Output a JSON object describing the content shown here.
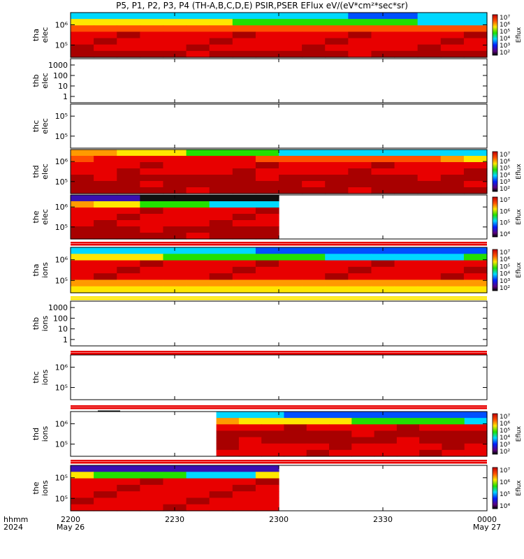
{
  "title": "P5, P1, P2, P3, P4 (TH-A,B,C,D,E) PSIR,PSER EFlux eV/(eV*cm²*sec*sr)",
  "time_axis": {
    "label_line1": "hhmm",
    "label_line2": "2024",
    "ticks": [
      {
        "t": 0,
        "label": "2200",
        "sub": "May 26"
      },
      {
        "t": 30,
        "label": "2230",
        "sub": ""
      },
      {
        "t": 60,
        "label": "2300",
        "sub": ""
      },
      {
        "t": 90,
        "label": "2330",
        "sub": ""
      },
      {
        "t": 120,
        "label": "0000",
        "sub": "May 27"
      }
    ],
    "range_minutes": [
      0,
      120
    ]
  },
  "colors": {
    "dark_red": "#a80000",
    "red": "#e80000",
    "orange_red": "#ff5000",
    "orange": "#ff9a00",
    "yellow": "#ffe600",
    "green": "#22e000",
    "cyan": "#00d8ff",
    "blue": "#0050ff",
    "indigo": "#3a10b0",
    "black": "#101010"
  },
  "chart_data": [
    {
      "type": "heatmap",
      "probe": "tha",
      "species": "elec",
      "ylabel": [
        "tha",
        "elec"
      ],
      "yticks": [
        "10⁶",
        "10⁵"
      ],
      "colorbar": {
        "label": "Eflux",
        "ticks": [
          "10⁷",
          "10⁶",
          "10⁵",
          "10⁴",
          "10³",
          "10²"
        ]
      },
      "coverage": [
        0,
        120
      ],
      "rows": [
        "cyan",
        "yellow",
        "orange_red",
        "red",
        "red",
        "red",
        "dark_red"
      ],
      "top_variation": [
        "cyan",
        "cyan",
        "cyan",
        "cyan",
        "cyan",
        "cyan",
        "cyan",
        "cyan",
        "cyan",
        "cyan",
        "cyan",
        "cyan",
        "blue",
        "blue",
        "blue",
        "cyan",
        "cyan",
        "cyan"
      ],
      "row2_variation": [
        "yellow",
        "yellow",
        "yellow",
        "yellow",
        "yellow",
        "yellow",
        "yellow",
        "green",
        "green",
        "green",
        "green",
        "green",
        "green",
        "green",
        "green",
        "cyan",
        "cyan",
        "cyan"
      ]
    },
    {
      "type": "heatmap",
      "probe": "thb",
      "species": "elec",
      "ylabel": [
        "thb",
        "elec"
      ],
      "yticks": [
        "1000",
        "100",
        "10",
        "1"
      ],
      "coverage": null
    },
    {
      "type": "heatmap",
      "probe": "thc",
      "species": "elec",
      "ylabel": [
        "thc",
        "elec"
      ],
      "yticks": [
        "10⁵",
        "10⁵"
      ],
      "coverage": null
    },
    {
      "type": "heatmap",
      "probe": "thd",
      "species": "elec",
      "ylabel": [
        "thd",
        "elec"
      ],
      "yticks": [
        "10⁶",
        "10⁵"
      ],
      "colorbar": {
        "label": "Eflux",
        "ticks": [
          "10⁷",
          "10⁶",
          "10⁵",
          "10⁴",
          "10³",
          "10²"
        ]
      },
      "coverage": [
        0,
        120
      ],
      "rows": [
        "cyan",
        "yellow",
        "red",
        "red",
        "dark_red",
        "dark_red",
        "dark_red"
      ],
      "top_variation": [
        "orange",
        "orange",
        "yellow",
        "yellow",
        "yellow",
        "green",
        "green",
        "green",
        "green",
        "cyan",
        "cyan",
        "cyan",
        "cyan",
        "cyan",
        "cyan",
        "cyan",
        "cyan",
        "cyan"
      ],
      "row2_variation": [
        "orange_red",
        "red",
        "red",
        "red",
        "red",
        "red",
        "red",
        "red",
        "orange_red",
        "orange_red",
        "orange_red",
        "orange_red",
        "orange_red",
        "orange_red",
        "orange_red",
        "orange_red",
        "orange",
        "yellow"
      ]
    },
    {
      "type": "heatmap",
      "probe": "the",
      "species": "elec",
      "ylabel": [
        "the",
        "elec"
      ],
      "yticks": [
        "10⁶",
        "10⁵"
      ],
      "colorbar": {
        "label": "Eflux",
        "ticks": [
          "10⁷",
          "10⁶",
          "10⁵",
          "10⁴"
        ]
      },
      "coverage": [
        0,
        60
      ],
      "rows": [
        "indigo",
        "orange",
        "red",
        "red",
        "red",
        "dark_red",
        "dark_red"
      ],
      "top_variation": [
        "indigo",
        "indigo",
        "indigo",
        "black",
        "black",
        "black",
        "black",
        "black",
        "black"
      ],
      "row2_variation": [
        "orange",
        "yellow",
        "yellow",
        "green",
        "green",
        "green",
        "cyan",
        "cyan",
        "cyan"
      ]
    },
    {
      "type": "heatmap",
      "probe": "tha",
      "species": "ions",
      "ylabel": [
        "tha",
        "ions"
      ],
      "yticks": [
        "10⁶",
        "10⁵"
      ],
      "colorbar": {
        "label": "Eflux",
        "ticks": [
          "10⁷",
          "10⁶",
          "10⁵",
          "10⁴",
          "10³",
          "10²"
        ]
      },
      "coverage": [
        0,
        120
      ],
      "rows": [
        "cyan",
        "yellow",
        "red",
        "red",
        "red",
        "orange",
        "yellow"
      ],
      "top_variation": [
        "cyan",
        "cyan",
        "cyan",
        "cyan",
        "cyan",
        "cyan",
        "cyan",
        "cyan",
        "blue",
        "blue",
        "blue",
        "blue",
        "blue",
        "blue",
        "blue",
        "blue",
        "blue",
        "blue"
      ],
      "row2_variation": [
        "yellow",
        "yellow",
        "yellow",
        "yellow",
        "green",
        "green",
        "green",
        "green",
        "green",
        "green",
        "green",
        "cyan",
        "cyan",
        "cyan",
        "cyan",
        "cyan",
        "cyan",
        "green"
      ]
    },
    {
      "type": "heatmap",
      "probe": "thb",
      "species": "ions",
      "ylabel": [
        "thb",
        "ions"
      ],
      "yticks": [
        "1000",
        "100",
        "10",
        "1"
      ],
      "coverage": null
    },
    {
      "type": "heatmap",
      "probe": "thc",
      "species": "ions",
      "ylabel": [
        "thc",
        "ions"
      ],
      "yticks": [
        "10⁶",
        "10⁵"
      ],
      "coverage": null
    },
    {
      "type": "heatmap",
      "probe": "thd",
      "species": "ions",
      "ylabel": [
        "thd",
        "ions"
      ],
      "yticks": [
        "10⁶",
        "10⁵"
      ],
      "colorbar": {
        "label": "Eflux",
        "ticks": [
          "10⁷",
          "10⁶",
          "10⁵",
          "10⁴",
          "10³",
          "10²"
        ]
      },
      "coverage": [
        42,
        120
      ],
      "rows": [
        "cyan",
        "orange",
        "red",
        "dark_red",
        "dark_red",
        "red",
        "red"
      ],
      "top_variation": [
        "cyan",
        "cyan",
        "cyan",
        "blue",
        "blue",
        "blue",
        "blue",
        "blue",
        "blue",
        "blue",
        "blue",
        "blue"
      ],
      "row2_variation": [
        "orange",
        "yellow",
        "yellow",
        "yellow",
        "yellow",
        "yellow",
        "green",
        "green",
        "green",
        "green",
        "green",
        "cyan"
      ]
    },
    {
      "type": "heatmap",
      "probe": "the",
      "species": "ions",
      "ylabel": [
        "the",
        "ions"
      ],
      "yticks": [
        "10⁵",
        "10⁵"
      ],
      "colorbar": {
        "label": "Eflux",
        "ticks": [
          "10⁷",
          "10⁶",
          "10⁵",
          "10⁴"
        ]
      },
      "coverage": [
        0,
        60
      ],
      "rows": [
        "indigo",
        "green",
        "red",
        "red",
        "red",
        "red",
        "red"
      ],
      "top_variation": [
        "indigo",
        "indigo",
        "indigo",
        "indigo",
        "indigo",
        "indigo",
        "indigo",
        "indigo",
        "indigo"
      ],
      "row2_variation": [
        "yellow",
        "green",
        "green",
        "green",
        "green",
        "cyan",
        "cyan",
        "cyan",
        "yellow"
      ]
    }
  ]
}
